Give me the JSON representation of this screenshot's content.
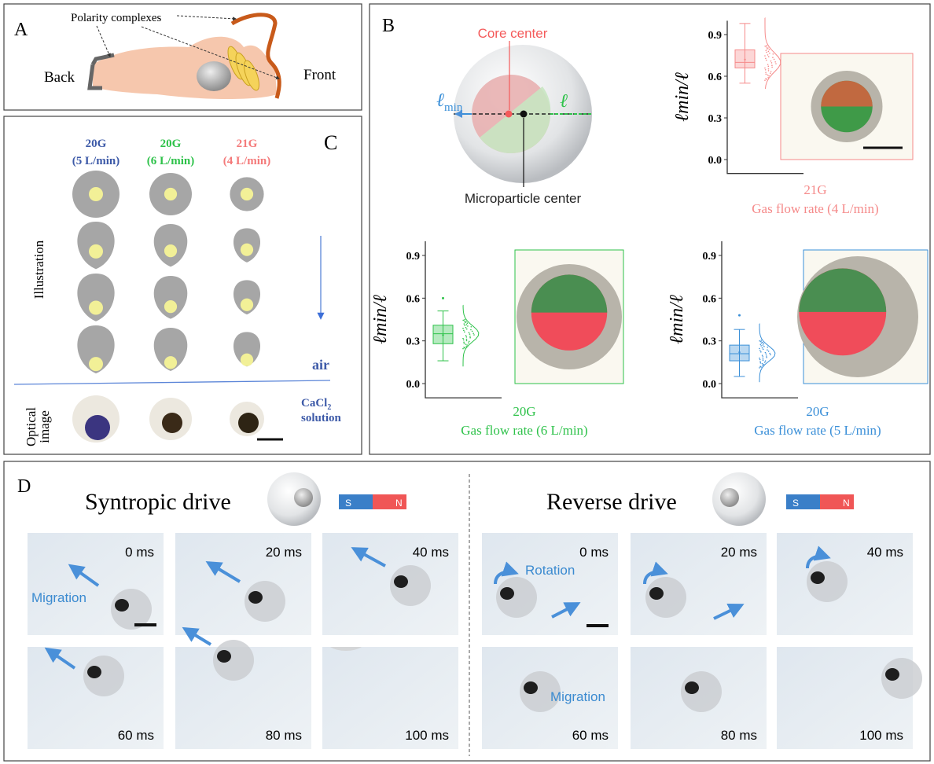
{
  "panel_a": {
    "label": "A",
    "annotation": "Polarity complexes",
    "back": "Back",
    "front": "Front"
  },
  "panel_b": {
    "label": "B",
    "core_center": "Core center",
    "microparticle_center": "Microparticle center",
    "l_min": "ℓ",
    "l_min_sub": "min",
    "l": "ℓ",
    "colors": {
      "red": "#f47a7a",
      "green": "#2ec24a",
      "blue": "#3a8fd8"
    }
  },
  "chart_data": [
    {
      "type": "box",
      "ylabel": "ℓmin/ℓ",
      "yticks": [
        "0.9",
        "0.6",
        "0.3",
        "0.0"
      ],
      "ylim": [
        -0.1,
        1.0
      ],
      "xlabel_line1": "21G",
      "xlabel_line2": "Gas flow rate (4 L/min)",
      "color": "#f58a8a",
      "box": {
        "q1": 0.66,
        "median": 0.7,
        "q3": 0.79,
        "mean": 0.72,
        "min": 0.55,
        "max": 0.98,
        "outliers": []
      }
    },
    {
      "type": "box",
      "ylabel": "ℓmin/ℓ",
      "yticks": [
        "0.9",
        "0.6",
        "0.3",
        "0.0"
      ],
      "ylim": [
        -0.1,
        1.0
      ],
      "xlabel_line1": "20G",
      "xlabel_line2": "Gas flow rate (6 L/min)",
      "color": "#2ec24a",
      "box": {
        "q1": 0.28,
        "median": 0.35,
        "q3": 0.41,
        "mean": 0.34,
        "min": 0.16,
        "max": 0.51,
        "outliers": [
          0.6
        ]
      }
    },
    {
      "type": "box",
      "ylabel": "ℓmin/ℓ",
      "yticks": [
        "0.9",
        "0.6",
        "0.3",
        "0.0"
      ],
      "ylim": [
        -0.1,
        1.0
      ],
      "xlabel_line1": "20G",
      "xlabel_line2": "Gas flow rate (5 L/min)",
      "color": "#3a8fd8",
      "box": {
        "q1": 0.16,
        "median": 0.21,
        "q3": 0.27,
        "mean": 0.22,
        "min": 0.05,
        "max": 0.38,
        "outliers": [
          0.48
        ]
      }
    }
  ],
  "panel_c": {
    "label": "C",
    "columns": [
      {
        "gauge": "20G",
        "rate": "(5 L/min)",
        "color": "#3d5aa8"
      },
      {
        "gauge": "20G",
        "rate": "(6 L/min)",
        "color": "#2ec24a"
      },
      {
        "gauge": "21G",
        "rate": "(4 L/min)",
        "color": "#f47a7a"
      }
    ],
    "row_label_illustration": "Illustration",
    "row_label_optical_1": "Optical",
    "row_label_optical_2": "image",
    "air": "air",
    "cacl2": "CaCl",
    "cacl2_sub": "2",
    "solution": "solution"
  },
  "panel_d": {
    "label": "D",
    "syntropic": {
      "title": "Syntropic drive",
      "frames": [
        "0 ms",
        "20 ms",
        "40 ms",
        "60 ms",
        "80 ms",
        "100 ms"
      ],
      "annotation": "Migration"
    },
    "reverse": {
      "title": "Reverse drive",
      "frames": [
        "0 ms",
        "20 ms",
        "40 ms",
        "60 ms",
        "80 ms",
        "100 ms"
      ],
      "annotation_rotation": "Rotation",
      "annotation_migration": "Migration"
    },
    "magnet_s": "S",
    "magnet_n": "N"
  }
}
